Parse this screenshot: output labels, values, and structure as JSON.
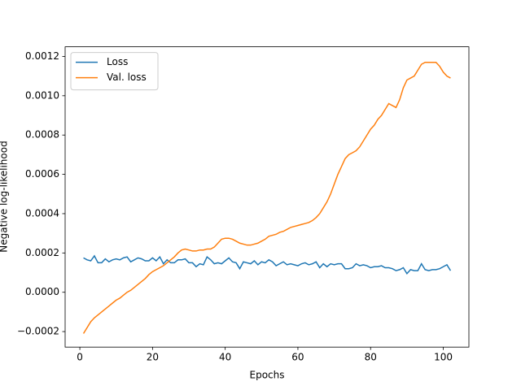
{
  "chart_data": {
    "type": "line",
    "x_label": "Epochs",
    "y_label": "Negative log-likelihood",
    "x": [
      1,
      2,
      3,
      4,
      5,
      6,
      7,
      8,
      9,
      10,
      11,
      12,
      13,
      14,
      15,
      16,
      17,
      18,
      19,
      20,
      21,
      22,
      23,
      24,
      25,
      26,
      27,
      28,
      29,
      30,
      31,
      32,
      33,
      34,
      35,
      36,
      37,
      38,
      39,
      40,
      41,
      42,
      43,
      44,
      45,
      46,
      47,
      48,
      49,
      50,
      51,
      52,
      53,
      54,
      55,
      56,
      57,
      58,
      59,
      60,
      61,
      62,
      63,
      64,
      65,
      66,
      67,
      68,
      69,
      70,
      71,
      72,
      73,
      74,
      75,
      76,
      77,
      78,
      79,
      80,
      81,
      82,
      83,
      84,
      85,
      86,
      87,
      88,
      89,
      90,
      91,
      92,
      93,
      94,
      95,
      96,
      97,
      98,
      99,
      100,
      101,
      102
    ],
    "series": [
      {
        "name": "Loss",
        "color": "#1f77b4",
        "values": [
          0.000175,
          0.000165,
          0.00016,
          0.000185,
          0.00015,
          0.00015,
          0.00017,
          0.000155,
          0.000165,
          0.00017,
          0.000165,
          0.000175,
          0.00018,
          0.000155,
          0.000165,
          0.000175,
          0.00017,
          0.00016,
          0.00016,
          0.000175,
          0.00016,
          0.00018,
          0.000145,
          0.000165,
          0.00015,
          0.00015,
          0.000165,
          0.000165,
          0.00017,
          0.00015,
          0.00015,
          0.00013,
          0.000145,
          0.00014,
          0.00018,
          0.000165,
          0.000145,
          0.00015,
          0.000145,
          0.00016,
          0.000175,
          0.000155,
          0.00015,
          0.00012,
          0.000155,
          0.00015,
          0.000145,
          0.00016,
          0.00014,
          0.000155,
          0.00015,
          0.000165,
          0.000155,
          0.000135,
          0.000145,
          0.000155,
          0.00014,
          0.000145,
          0.00014,
          0.000135,
          0.000145,
          0.00015,
          0.00014,
          0.000145,
          0.000155,
          0.000125,
          0.000145,
          0.00013,
          0.000145,
          0.00014,
          0.000145,
          0.000145,
          0.00012,
          0.00012,
          0.000125,
          0.000145,
          0.000135,
          0.00014,
          0.000135,
          0.000125,
          0.00013,
          0.00013,
          0.000135,
          0.000125,
          0.000125,
          0.00012,
          0.00011,
          0.000115,
          0.000125,
          9.5e-05,
          0.000115,
          0.00011,
          0.00011,
          0.000145,
          0.000115,
          0.00011,
          0.000115,
          0.000115,
          0.00012,
          0.00013,
          0.00014,
          0.00011
        ]
      },
      {
        "name": "Val. loss",
        "color": "#ff7f0e",
        "values": [
          -0.00021,
          -0.00018,
          -0.00015,
          -0.00013,
          -0.000115,
          -0.0001,
          -8.5e-05,
          -7e-05,
          -5.5e-05,
          -4e-05,
          -3e-05,
          -1.5e-05,
          0,
          1e-05,
          2.5e-05,
          4e-05,
          5.5e-05,
          7e-05,
          9e-05,
          0.000105,
          0.000115,
          0.000125,
          0.000135,
          0.00015,
          0.000165,
          0.00018,
          0.0002,
          0.000215,
          0.00022,
          0.000215,
          0.00021,
          0.00021,
          0.000215,
          0.000215,
          0.00022,
          0.00022,
          0.00023,
          0.00025,
          0.00027,
          0.000275,
          0.000275,
          0.00027,
          0.00026,
          0.00025,
          0.000245,
          0.00024,
          0.00024,
          0.000245,
          0.00025,
          0.00026,
          0.00027,
          0.000285,
          0.00029,
          0.000295,
          0.000305,
          0.00031,
          0.00032,
          0.00033,
          0.000335,
          0.00034,
          0.000345,
          0.00035,
          0.000355,
          0.000365,
          0.00038,
          0.0004,
          0.00043,
          0.00046,
          0.0005,
          0.00055,
          0.0006,
          0.00064,
          0.00068,
          0.0007,
          0.00071,
          0.00072,
          0.00074,
          0.00077,
          0.0008,
          0.00083,
          0.00085,
          0.00088,
          0.0009,
          0.00093,
          0.00096,
          0.00095,
          0.00094,
          0.00098,
          0.00104,
          0.00108,
          0.00109,
          0.0011,
          0.00113,
          0.00116,
          0.00117,
          0.00117,
          0.00117,
          0.00117,
          0.00115,
          0.00112,
          0.0011,
          0.00109
        ]
      }
    ],
    "xlim": [
      -4.05,
      107.05
    ],
    "xticks": [
      0,
      20,
      40,
      60,
      80,
      100
    ],
    "ylim": [
      -0.000279,
      0.001249
    ],
    "yticks": [
      {
        "value": -0.0002,
        "label": "−0.0002"
      },
      {
        "value": 0,
        "label": "0.0000"
      },
      {
        "value": 0.0002,
        "label": "0.0002"
      },
      {
        "value": 0.0004,
        "label": "0.0004"
      },
      {
        "value": 0.0006,
        "label": "0.0006"
      },
      {
        "value": 0.0008,
        "label": "0.0008"
      },
      {
        "value": 0.001,
        "label": "0.0010"
      },
      {
        "value": 0.0012,
        "label": "0.0012"
      }
    ],
    "legend": "upper left",
    "grid": false
  }
}
